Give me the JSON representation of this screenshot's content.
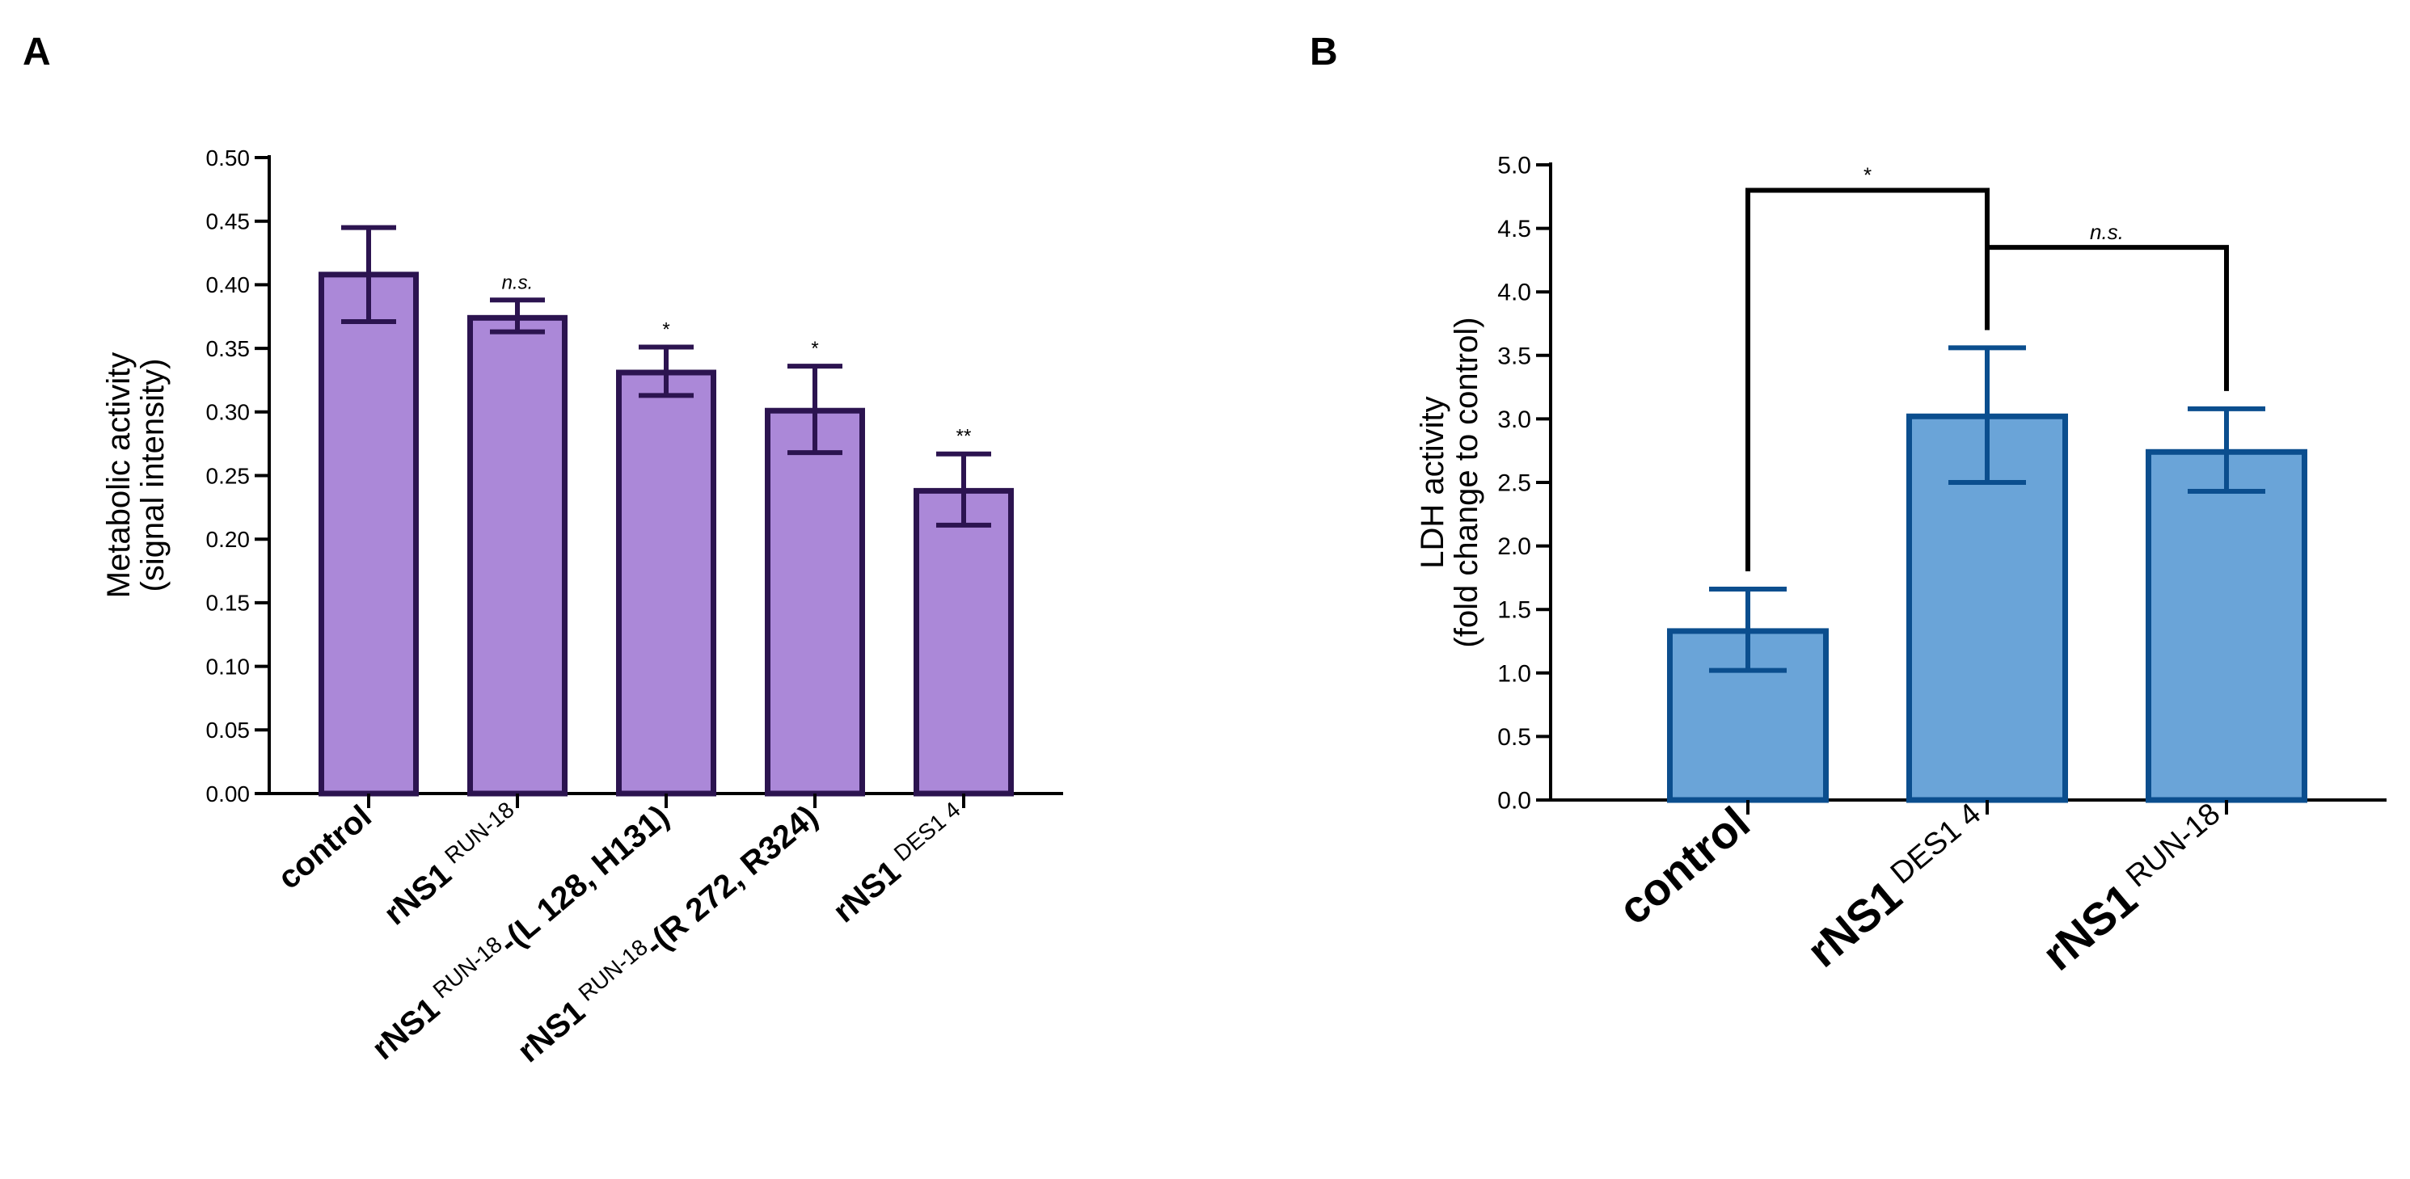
{
  "chart_data": [
    {
      "panel_label": "A",
      "type": "bar",
      "ylabel": "Metabolic activity",
      "ylabel_sub": "(signal intensity)",
      "ylim": [
        0,
        0.5
      ],
      "yticks": [
        "0.00",
        "0.05",
        "0.10",
        "0.15",
        "0.20",
        "0.25",
        "0.30",
        "0.35",
        "0.40",
        "0.45",
        "0.50"
      ],
      "categories": [
        {
          "main": "control",
          "sup": ""
        },
        {
          "main": "rNS1",
          "sup": "RUN-18"
        },
        {
          "main": "rNS1",
          "sup": "RUN-18",
          "suffix": "-(L 128, H131)"
        },
        {
          "main": "rNS1",
          "sup": "RUN-18",
          "suffix": "-(R 272, R324)"
        },
        {
          "main": "rNS1",
          "sup": "DES1 4"
        }
      ],
      "values": [
        0.408,
        0.374,
        0.331,
        0.301,
        0.238
      ],
      "err_low": [
        0.371,
        0.363,
        0.313,
        0.268,
        0.211
      ],
      "err_high": [
        0.445,
        0.388,
        0.351,
        0.336,
        0.267
      ],
      "significance": [
        "",
        "n.s.",
        "*",
        "*",
        "**"
      ],
      "colors": {
        "fill": "#ab88d8",
        "stroke": "#2c1450"
      }
    },
    {
      "panel_label": "B",
      "type": "bar",
      "ylabel": "LDH activity",
      "ylabel_sub": "(fold change to control)",
      "ylim": [
        0,
        5.0
      ],
      "yticks": [
        "0.0",
        "0.5",
        "1.0",
        "1.5",
        "2.0",
        "2.5",
        "3.0",
        "3.5",
        "4.0",
        "4.5",
        "5.0"
      ],
      "categories": [
        {
          "main": "control",
          "sup": ""
        },
        {
          "main": "rNS1",
          "sup": "DES1 4"
        },
        {
          "main": "rNS1",
          "sup": "RUN-18"
        }
      ],
      "values": [
        1.33,
        3.02,
        2.74
      ],
      "err_low": [
        1.02,
        2.5,
        2.43
      ],
      "err_high": [
        1.66,
        3.56,
        3.08
      ],
      "comparisons": [
        {
          "from": 0,
          "to": 1,
          "label": "*",
          "level": 4.8
        },
        {
          "from": 1,
          "to": 2,
          "label": "n.s.",
          "level": 4.35
        }
      ],
      "colors": {
        "fill": "#6aa4d8",
        "stroke": "#0b4e8e"
      }
    }
  ]
}
